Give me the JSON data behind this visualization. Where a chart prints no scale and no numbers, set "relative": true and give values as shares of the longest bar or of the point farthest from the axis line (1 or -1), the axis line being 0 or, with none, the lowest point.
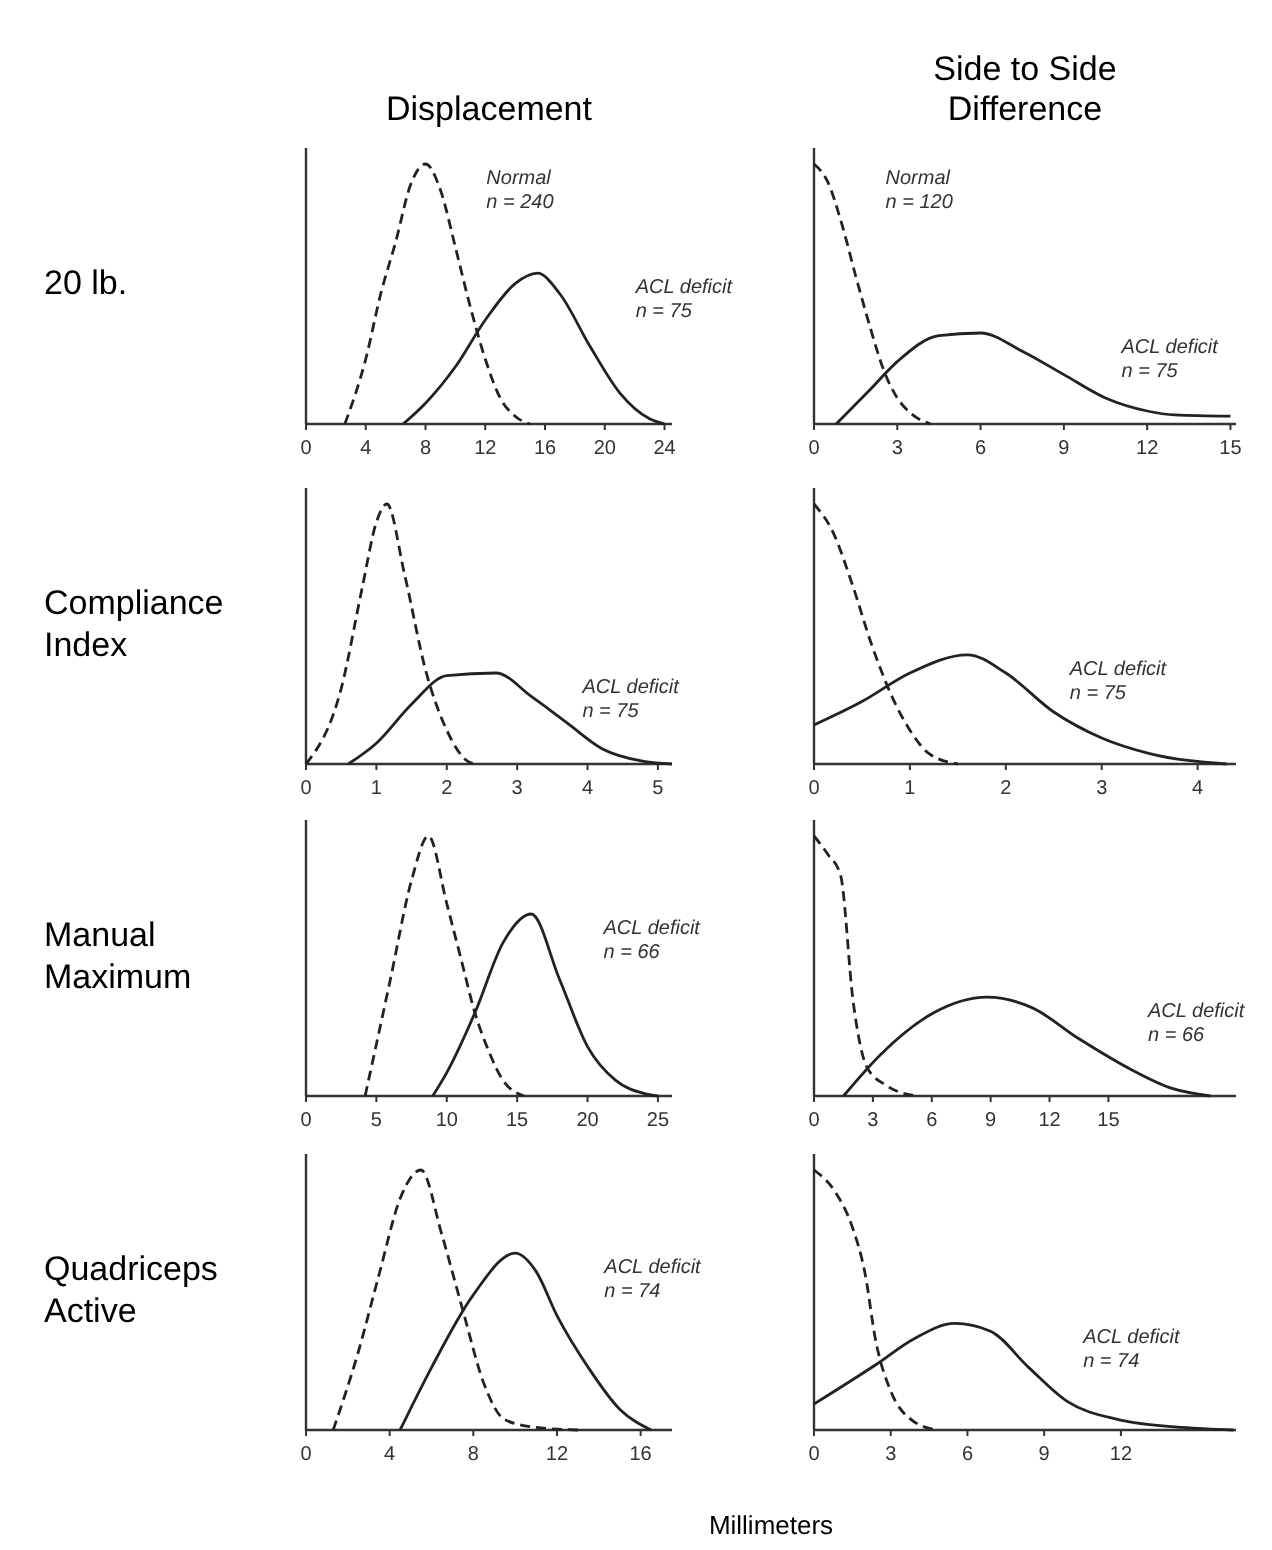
{
  "chart_data": [
    {
      "type": "line",
      "title": "Displacement",
      "ylabel": "20 lb.",
      "relative": true,
      "xlim": [
        0,
        24.5
      ],
      "xticks": [
        0,
        4,
        8,
        12,
        16,
        20,
        24
      ],
      "series": [
        {
          "color": "#222222",
          "line_style": "dashed",
          "x": [
            2.6,
            4,
            5,
            6,
            7,
            8,
            9,
            10,
            11,
            12,
            13,
            14,
            15
          ],
          "values": [
            0,
            0.25,
            0.5,
            0.7,
            0.92,
            1,
            0.9,
            0.68,
            0.45,
            0.25,
            0.1,
            0.03,
            0
          ]
        },
        {
          "color": "#222222",
          "line_style": "solid",
          "x": [
            6.5,
            8,
            10,
            12,
            14,
            15.5,
            17,
            19,
            21,
            23,
            24
          ],
          "values": [
            0,
            0.08,
            0.22,
            0.4,
            0.54,
            0.58,
            0.5,
            0.3,
            0.12,
            0.02,
            0
          ]
        }
      ],
      "annotations": [
        "Normal\nn = 240",
        "ACL deficit\nn = 75"
      ]
    },
    {
      "type": "line",
      "title": "Side to Side Difference",
      "relative": true,
      "xlim": [
        0,
        15.2
      ],
      "xticks": [
        0,
        3,
        6,
        9,
        12,
        15
      ],
      "series": [
        {
          "color": "#222222",
          "line_style": "dashed",
          "x": [
            0,
            0.5,
            1,
            1.5,
            2,
            2.5,
            3,
            3.5,
            4.2
          ],
          "values": [
            1,
            0.93,
            0.77,
            0.57,
            0.38,
            0.21,
            0.1,
            0.04,
            0
          ]
        },
        {
          "color": "#222222",
          "line_style": "solid",
          "x": [
            0.8,
            2,
            3,
            4.5,
            6,
            7.5,
            9,
            10.5,
            12,
            13,
            15
          ],
          "values": [
            0,
            0.13,
            0.24,
            0.34,
            0.35,
            0.28,
            0.19,
            0.1,
            0.05,
            0.035,
            0.03
          ]
        }
      ],
      "annotations": [
        "Normal\nn = 120",
        "ACL deficit\nn = 75"
      ]
    },
    {
      "type": "line",
      "ylabel": "Compliance Index",
      "relative": true,
      "xlim": [
        0,
        5.2
      ],
      "xticks": [
        0,
        1,
        2,
        3,
        4,
        5
      ],
      "series": [
        {
          "color": "#222222",
          "line_style": "dashed",
          "x": [
            0,
            0.5,
            0.8,
            1,
            1.15,
            1.4,
            1.7,
            2,
            2.3,
            2.4
          ],
          "values": [
            0,
            0.29,
            0.68,
            0.93,
            1,
            0.73,
            0.36,
            0.13,
            0.01,
            0
          ]
        },
        {
          "color": "#222222",
          "line_style": "solid",
          "x": [
            0.6,
            1,
            1.5,
            2,
            2.7,
            3.2,
            3.7,
            4.2,
            4.8,
            5.2
          ],
          "values": [
            0,
            0.08,
            0.23,
            0.34,
            0.35,
            0.26,
            0.16,
            0.06,
            0.01,
            0
          ]
        }
      ],
      "annotations": [
        "ACL deficit\nn = 75"
      ]
    },
    {
      "type": "line",
      "relative": true,
      "xlim": [
        0,
        4.4
      ],
      "xticks": [
        0,
        1,
        2,
        3,
        4
      ],
      "series": [
        {
          "color": "#222222",
          "line_style": "dashed",
          "x": [
            0,
            0.2,
            0.4,
            0.6,
            0.8,
            1,
            1.2,
            1.5
          ],
          "values": [
            1,
            0.89,
            0.69,
            0.46,
            0.27,
            0.13,
            0.04,
            0
          ]
        },
        {
          "color": "#222222",
          "line_style": "solid",
          "x": [
            0,
            0.5,
            1,
            1.6,
            2,
            2.5,
            3,
            3.5,
            4.3
          ],
          "values": [
            0.15,
            0.24,
            0.35,
            0.42,
            0.35,
            0.2,
            0.1,
            0.04,
            0
          ]
        }
      ],
      "annotations": [
        "ACL deficit\nn = 75"
      ]
    },
    {
      "type": "line",
      "ylabel": "Manual Maximum",
      "relative": true,
      "xlim": [
        0,
        26
      ],
      "xticks": [
        0,
        5,
        10,
        15,
        20,
        25
      ],
      "series": [
        {
          "color": "#222222",
          "line_style": "dashed",
          "x": [
            4.2,
            6,
            7.5,
            8.7,
            10,
            11,
            12,
            13,
            14,
            15.5
          ],
          "values": [
            0,
            0.45,
            0.83,
            1,
            0.74,
            0.53,
            0.32,
            0.17,
            0.06,
            0
          ]
        },
        {
          "color": "#222222",
          "line_style": "solid",
          "x": [
            9,
            10,
            12,
            14,
            16,
            18,
            20,
            22,
            24,
            25
          ],
          "values": [
            0,
            0.09,
            0.32,
            0.59,
            0.7,
            0.45,
            0.19,
            0.06,
            0.01,
            0
          ]
        }
      ],
      "annotations": [
        "ACL deficit\nn = 66"
      ]
    },
    {
      "type": "line",
      "relative": true,
      "xlim": [
        0,
        21.5
      ],
      "xticks": [
        0,
        3,
        6,
        9,
        12,
        15
      ],
      "series": [
        {
          "color": "#222222",
          "line_style": "dashed",
          "x": [
            0,
            0.7,
            1.35,
            2,
            2.7,
            3.7,
            5.2
          ],
          "values": [
            1,
            0.93,
            0.85,
            0.36,
            0.11,
            0.04,
            0
          ]
        },
        {
          "color": "#222222",
          "line_style": "solid",
          "x": [
            1.5,
            3.4,
            6.1,
            8.8,
            11.1,
            13.5,
            16.2,
            18.2,
            20.2
          ],
          "values": [
            0,
            0.16,
            0.32,
            0.38,
            0.34,
            0.22,
            0.1,
            0.03,
            0
          ]
        }
      ],
      "annotations": [
        "ACL deficit\nn = 66"
      ]
    },
    {
      "type": "line",
      "ylabel": "Quadriceps Active",
      "xlabel": "Millimeters",
      "relative": true,
      "xlim": [
        0,
        17.5
      ],
      "xticks": [
        0,
        4,
        8,
        12,
        16
      ],
      "series": [
        {
          "color": "#222222",
          "line_style": "dashed",
          "x": [
            1.3,
            2.5,
            3.5,
            4.5,
            5.5,
            6.5,
            7.5,
            8.5,
            9.5,
            11,
            13
          ],
          "values": [
            0,
            0.3,
            0.6,
            0.89,
            1,
            0.75,
            0.46,
            0.18,
            0.04,
            0.01,
            0
          ]
        },
        {
          "color": "#222222",
          "line_style": "solid",
          "x": [
            4.5,
            6,
            8,
            10,
            11,
            12,
            13.5,
            15,
            16.5
          ],
          "values": [
            0,
            0.24,
            0.52,
            0.68,
            0.61,
            0.44,
            0.24,
            0.08,
            0
          ]
        }
      ],
      "annotations": [
        "ACL deficit\nn = 74"
      ]
    },
    {
      "type": "line",
      "relative": true,
      "xlim": [
        0,
        16.5
      ],
      "xticks": [
        0,
        3,
        6,
        9,
        12
      ],
      "series": [
        {
          "color": "#222222",
          "line_style": "dashed",
          "x": [
            0,
            0.8,
            1.5,
            2,
            2.4,
            3,
            3.8,
            4.8
          ],
          "values": [
            1,
            0.92,
            0.78,
            0.6,
            0.35,
            0.15,
            0.04,
            0
          ]
        },
        {
          "color": "#222222",
          "line_style": "solid",
          "x": [
            0,
            2.4,
            3.9,
            5.5,
            6.9,
            8.4,
            9.9,
            11.9,
            14.4,
            16.4
          ],
          "values": [
            0.1,
            0.25,
            0.35,
            0.41,
            0.38,
            0.24,
            0.11,
            0.04,
            0.01,
            0
          ]
        }
      ],
      "annotations": [
        "ACL deficit\nn = 74"
      ]
    }
  ]
}
